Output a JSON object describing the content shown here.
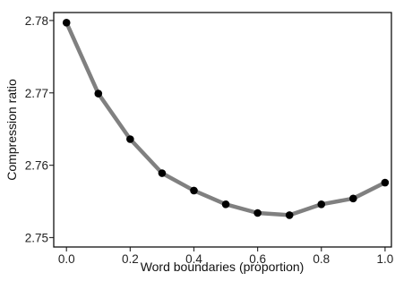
{
  "chart_data": {
    "type": "line",
    "title": "",
    "xlabel": "Word boundaries (proportion)",
    "ylabel": "Compression ratio",
    "xlim": [
      -0.04,
      1.02
    ],
    "ylim": [
      2.7487,
      2.7811
    ],
    "xticks": [
      0.0,
      0.2,
      0.4,
      0.6,
      0.8,
      1.0
    ],
    "xtick_labels": [
      "0.0",
      "0.2",
      "0.4",
      "0.6",
      "0.8",
      "1.0"
    ],
    "yticks": [
      2.75,
      2.76,
      2.77,
      2.78
    ],
    "ytick_labels": [
      "2.75",
      "2.76",
      "2.77",
      "2.78"
    ],
    "grid": false,
    "legend": "none",
    "series": [
      {
        "x": [
          0.0,
          0.1,
          0.2,
          0.3,
          0.4,
          0.5,
          0.6,
          0.7,
          0.8,
          0.9,
          1.0
        ],
        "values": [
          2.7797,
          2.7699,
          2.7636,
          2.7589,
          2.7565,
          2.7546,
          2.7534,
          2.7531,
          2.7546,
          2.7554,
          2.7576
        ],
        "line_color": "#808080",
        "marker_color": "#000000"
      }
    ]
  }
}
